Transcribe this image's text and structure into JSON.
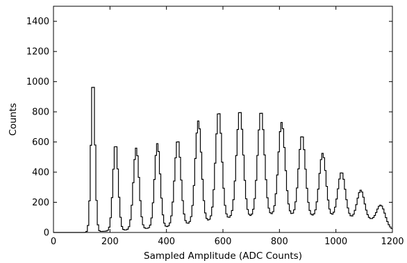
{
  "chart_data": {
    "type": "histogram",
    "title": "",
    "xlabel": "Sampled Amplitude (ADC Counts)",
    "ylabel": "Counts",
    "xlim": [
      0,
      1200
    ],
    "ylim": [
      0,
      1500
    ],
    "xticks": [
      0,
      200,
      400,
      600,
      800,
      1000,
      1200
    ],
    "yticks": [
      0,
      200,
      400,
      600,
      800,
      1000,
      1200,
      1400
    ],
    "xtick_labels": [
      "0",
      "200",
      "400",
      "600",
      "800",
      "1000",
      "1200"
    ],
    "ytick_labels": [
      "0",
      "200",
      "400",
      "600",
      "800",
      "1000",
      "1200",
      "1400"
    ],
    "grid": false,
    "line_color": "#000000",
    "bin_width": 5,
    "peaks": [
      {
        "x": 140,
        "height": 1025,
        "sigma": 7
      },
      {
        "x": 220,
        "height": 590,
        "sigma": 9
      },
      {
        "x": 293,
        "height": 560,
        "sigma": 10
      },
      {
        "x": 368,
        "height": 590,
        "sigma": 10
      },
      {
        "x": 440,
        "height": 615,
        "sigma": 11
      },
      {
        "x": 513,
        "height": 740,
        "sigma": 11
      },
      {
        "x": 585,
        "height": 805,
        "sigma": 11
      },
      {
        "x": 660,
        "height": 810,
        "sigma": 12
      },
      {
        "x": 735,
        "height": 805,
        "sigma": 12
      },
      {
        "x": 808,
        "height": 730,
        "sigma": 12
      },
      {
        "x": 880,
        "height": 645,
        "sigma": 12
      },
      {
        "x": 953,
        "height": 525,
        "sigma": 12
      },
      {
        "x": 1020,
        "height": 400,
        "sigma": 13
      },
      {
        "x": 1088,
        "height": 280,
        "sigma": 13
      },
      {
        "x": 1160,
        "height": 180,
        "sigma": 14
      }
    ],
    "baseline": [
      {
        "x": 0,
        "y": 0
      },
      {
        "x": 110,
        "y": 0
      },
      {
        "x": 150,
        "y": 5
      },
      {
        "x": 250,
        "y": 15
      },
      {
        "x": 400,
        "y": 35
      },
      {
        "x": 600,
        "y": 90
      },
      {
        "x": 800,
        "y": 115
      },
      {
        "x": 1000,
        "y": 100
      },
      {
        "x": 1150,
        "y": 80
      },
      {
        "x": 1200,
        "y": 20
      }
    ]
  }
}
